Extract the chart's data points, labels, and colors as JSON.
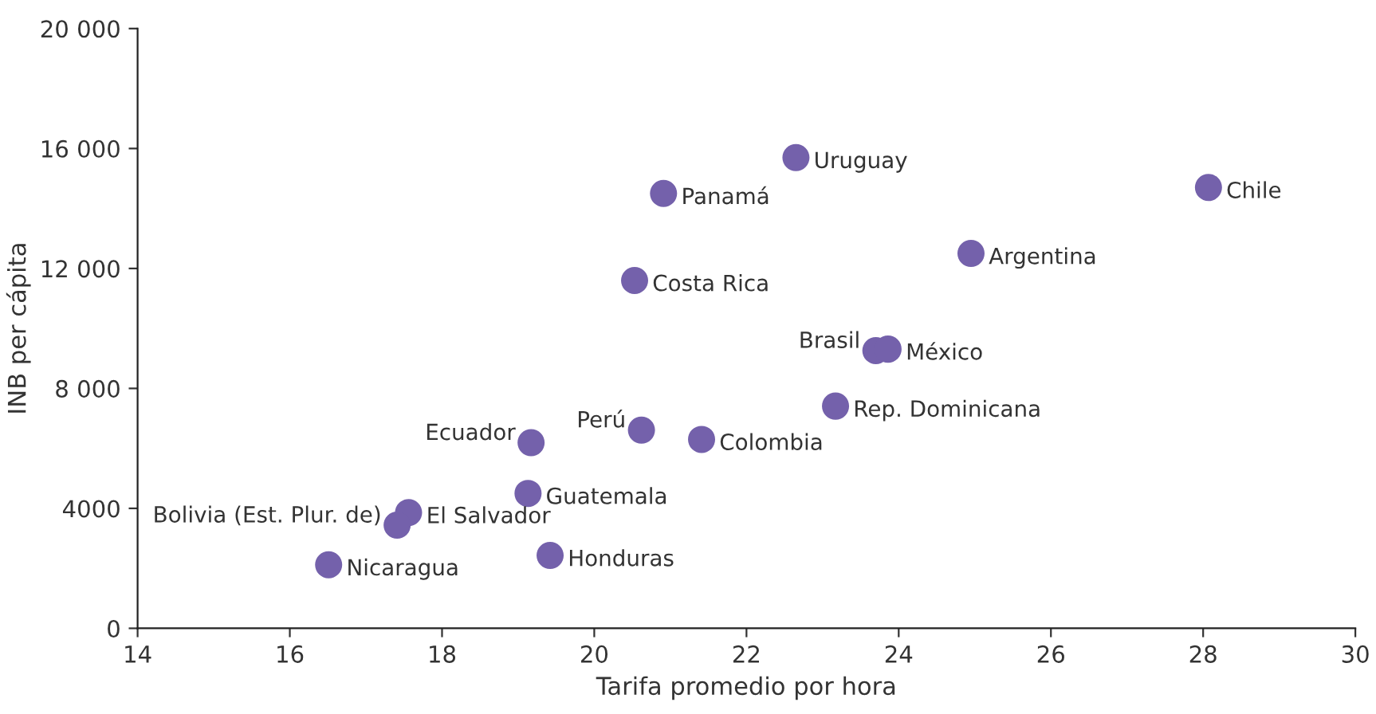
{
  "chart_data": {
    "type": "scatter",
    "xlabel": "Tarifa promedio por hora",
    "ylabel": "INB per cápita",
    "x": [
      28.07,
      22.65,
      20.91,
      24.95,
      20.53,
      23.7,
      23.86,
      23.17,
      20.62,
      21.41,
      19.17,
      19.13,
      17.56,
      17.41,
      19.42,
      16.51
    ],
    "series": [
      {
        "color": "#7461ab",
        "values": [
          14700,
          15700,
          14500,
          12500,
          11600,
          9260,
          9310,
          7410,
          6610,
          6300,
          6190,
          4500,
          3860,
          3440,
          2430,
          2120
        ]
      }
    ],
    "annotations": [
      {
        "text": "Chile",
        "x": 28.07,
        "y": 14700
      },
      {
        "text": "Uruguay",
        "x": 22.65,
        "y": 15700
      },
      {
        "text": "Panamá",
        "x": 20.91,
        "y": 14500
      },
      {
        "text": "Argentina",
        "x": 24.95,
        "y": 12500
      },
      {
        "text": "Costa Rica",
        "x": 20.53,
        "y": 11600
      },
      {
        "text": "Brasil",
        "x": 23.7,
        "y": 9260
      },
      {
        "text": "México",
        "x": 23.86,
        "y": 9310
      },
      {
        "text": "Rep. Dominicana",
        "x": 23.17,
        "y": 7410
      },
      {
        "text": "Perú",
        "x": 20.62,
        "y": 6610
      },
      {
        "text": "Colombia",
        "x": 21.41,
        "y": 6300
      },
      {
        "text": "Ecuador",
        "x": 19.17,
        "y": 6190
      },
      {
        "text": "Guatemala",
        "x": 19.13,
        "y": 4500
      },
      {
        "text": "El Salvador",
        "x": 17.56,
        "y": 3860
      },
      {
        "text": "Bolivia (Est. Plur. de)",
        "x": 17.41,
        "y": 3440
      },
      {
        "text": "Honduras",
        "x": 19.42,
        "y": 2430
      },
      {
        "text": "Nicaragua",
        "x": 16.51,
        "y": 2120
      }
    ],
    "xlim": [
      14,
      30
    ],
    "xticks": [
      14,
      16,
      18,
      20,
      22,
      24,
      26,
      28,
      30
    ],
    "ylim": [
      0,
      20000
    ],
    "yticks": [
      0,
      4000,
      {
        "value": 8000,
        "label": "8 000"
      },
      {
        "value": 12000,
        "label": "12 000"
      },
      {
        "value": 16000,
        "label": "16 000"
      },
      {
        "value": 20000,
        "label": "20 000"
      }
    ],
    "grid": false,
    "marker": "circle"
  }
}
